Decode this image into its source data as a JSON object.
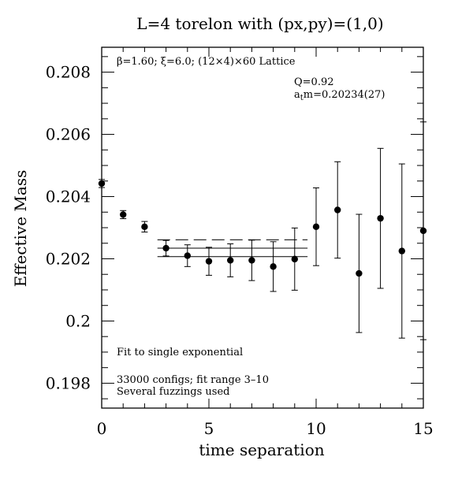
{
  "title": "L=4 torelon with (px,py)=(1,0)",
  "lattice_info": "β=1.60; ξ=6.0; (12×4)×60 Lattice",
  "fit_q": "Q=0.92",
  "fit_mass_prefix": "a",
  "fit_mass_sub": "t",
  "fit_mass_suffix": "m=0.20234(27)",
  "fit_type": "Fit to single exponential",
  "configs": "33000 configs; fit range 3–10",
  "fuzzings": "Several fuzzings used",
  "chart_data": {
    "type": "scatter",
    "title": "L=4 torelon with (px,py)=(1,0)",
    "xlabel": "time separation",
    "ylabel": "Effective Mass",
    "xlim": [
      0,
      15
    ],
    "ylim": [
      0.1972,
      0.2088
    ],
    "x_ticks": [
      0,
      5,
      10,
      15
    ],
    "x_tick_labels": [
      "0",
      "5",
      "10",
      "15"
    ],
    "y_ticks": [
      0.198,
      0.2,
      0.202,
      0.204,
      0.206,
      0.208
    ],
    "y_tick_labels": [
      "0.198",
      "0.2",
      "0.202",
      "0.204",
      "0.206",
      "0.208"
    ],
    "points": [
      {
        "x": 0,
        "y": 0.20442,
        "err": 0.00013
      },
      {
        "x": 1,
        "y": 0.20342,
        "err": 0.00013
      },
      {
        "x": 2,
        "y": 0.20303,
        "err": 0.00017
      },
      {
        "x": 3,
        "y": 0.20234,
        "err": 0.00025
      },
      {
        "x": 4,
        "y": 0.2021,
        "err": 0.00035
      },
      {
        "x": 5,
        "y": 0.20192,
        "err": 0.00045
      },
      {
        "x": 6,
        "y": 0.20195,
        "err": 0.00053
      },
      {
        "x": 7,
        "y": 0.20195,
        "err": 0.00065
      },
      {
        "x": 8,
        "y": 0.20175,
        "err": 0.0008
      },
      {
        "x": 9,
        "y": 0.20199,
        "err": 0.001
      },
      {
        "x": 10,
        "y": 0.20303,
        "err": 0.00125
      },
      {
        "x": 11,
        "y": 0.20357,
        "err": 0.00155
      },
      {
        "x": 12,
        "y": 0.20153,
        "err": 0.0019
      },
      {
        "x": 13,
        "y": 0.2033,
        "err": 0.00225
      },
      {
        "x": 14,
        "y": 0.20225,
        "err": 0.0028
      },
      {
        "x": 15,
        "y": 0.2029,
        "err": 0.0035
      }
    ],
    "fit": {
      "x_range": [
        3,
        10
      ],
      "x_draw": [
        2.6,
        9.6
      ],
      "value": 0.20234,
      "error": 0.00027,
      "upper_dashed": 0.20261
    }
  }
}
